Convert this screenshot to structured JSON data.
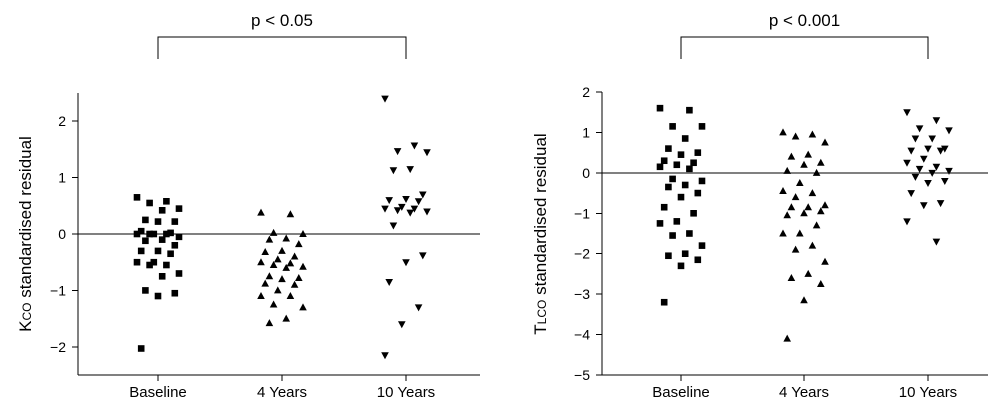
{
  "chart_data": [
    {
      "type": "scatter",
      "ylabel": "Kco standardised residual",
      "ylabel_main": "K",
      "ylabel_sub": "CO",
      "ylabel_rest": " standardised residual",
      "categories": [
        "Baseline",
        "4 Years",
        "10 Years"
      ],
      "ylim": [
        -2.5,
        2.5
      ],
      "yticks": [
        2,
        1,
        0,
        -1,
        -2
      ],
      "ytick_labels": [
        "2",
        "1",
        "0",
        "−1",
        "−2"
      ],
      "reference_line": 0,
      "significance": {
        "label": "p < 0.05",
        "from": "Baseline",
        "to": "10 Years"
      },
      "series": [
        {
          "category": "Baseline",
          "marker": "square",
          "values": [
            0.65,
            0.58,
            0.55,
            0.45,
            0.42,
            0.25,
            0.22,
            0.22,
            0.05,
            0.02,
            0.0,
            0.0,
            0.0,
            0.0,
            -0.05,
            -0.1,
            -0.12,
            -0.2,
            -0.3,
            -0.3,
            -0.35,
            -0.5,
            -0.5,
            -0.55,
            -0.55,
            -0.7,
            -0.75,
            -1.0,
            -1.05,
            -1.1,
            -2.03
          ]
        },
        {
          "category": "4 Years",
          "marker": "triangle-up",
          "values": [
            0.38,
            0.35,
            0.02,
            0.0,
            -0.08,
            -0.1,
            -0.18,
            -0.3,
            -0.32,
            -0.4,
            -0.45,
            -0.5,
            -0.52,
            -0.55,
            -0.58,
            -0.6,
            -0.75,
            -0.78,
            -0.8,
            -0.88,
            -0.9,
            -1.0,
            -1.1,
            -1.1,
            -1.25,
            -1.3,
            -1.5,
            -1.58
          ]
        },
        {
          "category": "10 Years",
          "marker": "triangle-down",
          "values": [
            2.4,
            1.57,
            1.47,
            1.45,
            1.15,
            1.13,
            0.7,
            0.62,
            0.6,
            0.58,
            0.48,
            0.45,
            0.45,
            0.42,
            0.4,
            0.38,
            0.15,
            -0.38,
            -0.5,
            -0.85,
            -1.3,
            -1.6,
            -2.15
          ]
        }
      ]
    },
    {
      "type": "scatter",
      "ylabel": "Tlco standardised residual",
      "ylabel_main": "T",
      "ylabel_sub": "LCO",
      "ylabel_rest": " standardised residual",
      "categories": [
        "Baseline",
        "4 Years",
        "10 Years"
      ],
      "ylim": [
        -5,
        2
      ],
      "yticks": [
        2,
        1,
        0,
        -1,
        -2,
        -3,
        -4,
        -5
      ],
      "ytick_labels": [
        "2",
        "1",
        "0",
        "−1",
        "−2",
        "−3",
        "−4",
        "−5"
      ],
      "reference_line": 0,
      "significance": {
        "label": "p < 0.001",
        "from": "Baseline",
        "to": "10 Years"
      },
      "series": [
        {
          "category": "Baseline",
          "marker": "square",
          "values": [
            1.6,
            1.55,
            1.15,
            1.15,
            0.85,
            0.6,
            0.5,
            0.45,
            0.3,
            0.25,
            0.2,
            0.15,
            0.1,
            -0.15,
            -0.2,
            -0.3,
            -0.35,
            -0.5,
            -0.6,
            -0.85,
            -1.0,
            -1.2,
            -1.25,
            -1.5,
            -1.55,
            -1.8,
            -2.0,
            -2.05,
            -2.15,
            -2.3,
            -3.2
          ]
        },
        {
          "category": "4 Years",
          "marker": "triangle-up",
          "values": [
            1.0,
            0.95,
            0.9,
            0.75,
            0.45,
            0.4,
            0.25,
            0.2,
            0.05,
            0.0,
            -0.25,
            -0.45,
            -0.5,
            -0.6,
            -0.8,
            -0.85,
            -0.85,
            -0.95,
            -1.0,
            -1.05,
            -1.3,
            -1.5,
            -1.5,
            -1.8,
            -1.9,
            -2.2,
            -2.5,
            -2.6,
            -2.75,
            -3.15,
            -4.1
          ]
        },
        {
          "category": "10 Years",
          "marker": "triangle-down",
          "values": [
            1.5,
            1.3,
            1.1,
            1.05,
            0.85,
            0.85,
            0.6,
            0.6,
            0.55,
            0.55,
            0.35,
            0.25,
            0.15,
            0.1,
            0.05,
            0.0,
            -0.1,
            -0.2,
            -0.25,
            -0.5,
            -0.75,
            -0.8,
            -1.2,
            -1.7
          ]
        }
      ]
    }
  ]
}
